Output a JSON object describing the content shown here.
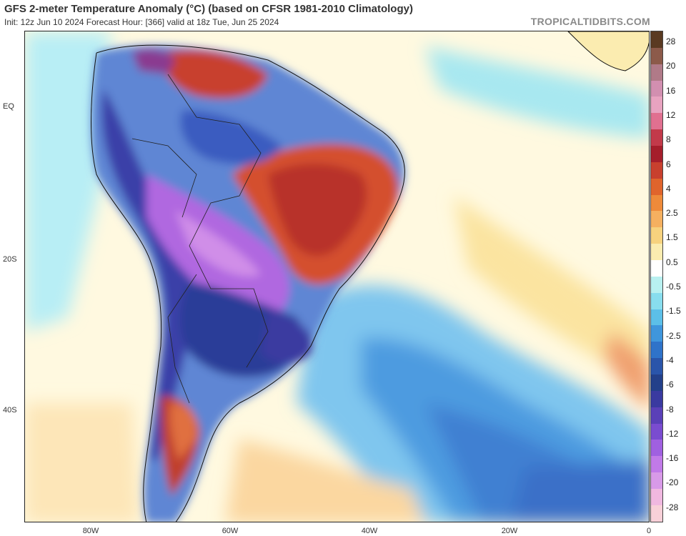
{
  "title": "GFS 2-meter Temperature Anomaly (°C) (based on CFSR 1981-2010 Climatology)",
  "subtitle": "Init: 12z Jun 10 2024   Forecast Hour: [366]   valid at 18z Tue, Jun 25 2024",
  "credit": "TROPICALTIDBITS.COM",
  "lat_labels": [
    "EQ",
    "20S",
    "40S"
  ],
  "lon_labels": [
    "80W",
    "60W",
    "40W",
    "20W",
    "0"
  ],
  "colorbar": {
    "labels": [
      "28",
      "20",
      "16",
      "12",
      "8",
      "6",
      "4",
      "2.5",
      "1.5",
      "0.5",
      "-0.5",
      "-1.5",
      "-2.5",
      "-4",
      "-6",
      "-8",
      "-12",
      "-16",
      "-20",
      "-28"
    ],
    "colors": [
      "#5a3a22",
      "#8c5a4a",
      "#b07a88",
      "#d28fb0",
      "#e8a3c0",
      "#e07090",
      "#c23a4a",
      "#a51e2b",
      "#c8402e",
      "#e0642c",
      "#ee8a3a",
      "#f5b060",
      "#f7d27e",
      "#fbecb0",
      "#ffffff",
      "#b8f0f0",
      "#88ddee",
      "#5cbfe8",
      "#3f96dc",
      "#2f73c9",
      "#2a55aa",
      "#23408a",
      "#3a3aa0",
      "#5a40b8",
      "#7a4cd0",
      "#a060e0",
      "#c17ae8",
      "#d89ae8",
      "#f0b8e0",
      "#f8d0d8"
    ]
  }
}
